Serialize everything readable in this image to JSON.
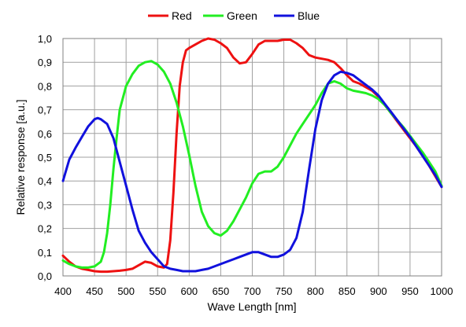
{
  "chart_data": {
    "type": "line",
    "xlabel": "Wave Length [nm]",
    "ylabel": "Relative response [a.u.]",
    "xlim": [
      400,
      1000
    ],
    "ylim": [
      0,
      1.0
    ],
    "x_ticks": [
      "400",
      "450",
      "500",
      "550",
      "600",
      "650",
      "700",
      "750",
      "800",
      "850",
      "900",
      "950",
      "1000"
    ],
    "x_tick_values": [
      400,
      450,
      500,
      550,
      600,
      650,
      700,
      750,
      800,
      850,
      900,
      950,
      1000
    ],
    "y_ticks": [
      "0,0",
      "0,1",
      "0,2",
      "0,3",
      "0,4",
      "0,5",
      "0,6",
      "0,7",
      "0,8",
      "0,9",
      "1,0"
    ],
    "y_tick_values": [
      0,
      0.1,
      0.2,
      0.3,
      0.4,
      0.5,
      0.6,
      0.7,
      0.8,
      0.9,
      1.0
    ],
    "grid": true,
    "legend_position": "top-center",
    "series": [
      {
        "name": "Red",
        "color": "#ee1111",
        "x": [
          400,
          410,
          420,
          430,
          440,
          450,
          460,
          470,
          480,
          490,
          500,
          510,
          520,
          530,
          540,
          550,
          560,
          565,
          570,
          575,
          580,
          585,
          590,
          595,
          600,
          610,
          620,
          630,
          640,
          650,
          660,
          670,
          680,
          690,
          700,
          710,
          720,
          730,
          740,
          750,
          760,
          770,
          780,
          790,
          800,
          810,
          820,
          830,
          840,
          850,
          860,
          870,
          880,
          890,
          900,
          910,
          920,
          930,
          940,
          950,
          960,
          970,
          980,
          990,
          1000
        ],
        "y": [
          0.085,
          0.06,
          0.04,
          0.03,
          0.025,
          0.02,
          0.018,
          0.018,
          0.02,
          0.022,
          0.025,
          0.03,
          0.045,
          0.06,
          0.055,
          0.04,
          0.035,
          0.05,
          0.15,
          0.35,
          0.6,
          0.8,
          0.9,
          0.95,
          0.96,
          0.975,
          0.99,
          1.0,
          0.995,
          0.98,
          0.96,
          0.92,
          0.895,
          0.9,
          0.935,
          0.975,
          0.99,
          0.99,
          0.99,
          0.995,
          0.995,
          0.98,
          0.96,
          0.93,
          0.92,
          0.915,
          0.91,
          0.9,
          0.875,
          0.845,
          0.82,
          0.81,
          0.795,
          0.78,
          0.755,
          0.72,
          0.685,
          0.65,
          0.615,
          0.58,
          0.545,
          0.505,
          0.465,
          0.42,
          0.375
        ]
      },
      {
        "name": "Green",
        "color": "#22ee22",
        "x": [
          400,
          410,
          420,
          430,
          440,
          450,
          460,
          465,
          470,
          475,
          480,
          485,
          490,
          500,
          510,
          520,
          530,
          540,
          550,
          560,
          570,
          580,
          590,
          600,
          610,
          620,
          630,
          640,
          650,
          660,
          670,
          680,
          690,
          700,
          710,
          720,
          730,
          740,
          750,
          760,
          770,
          780,
          790,
          800,
          810,
          820,
          830,
          840,
          850,
          860,
          870,
          880,
          890,
          900,
          910,
          920,
          930,
          940,
          950,
          960,
          970,
          980,
          990,
          1000
        ],
        "y": [
          0.065,
          0.05,
          0.04,
          0.035,
          0.035,
          0.04,
          0.06,
          0.1,
          0.18,
          0.3,
          0.45,
          0.58,
          0.7,
          0.8,
          0.85,
          0.885,
          0.9,
          0.905,
          0.89,
          0.86,
          0.81,
          0.73,
          0.63,
          0.51,
          0.38,
          0.27,
          0.21,
          0.18,
          0.17,
          0.19,
          0.23,
          0.28,
          0.33,
          0.39,
          0.43,
          0.44,
          0.44,
          0.46,
          0.5,
          0.55,
          0.6,
          0.64,
          0.68,
          0.72,
          0.77,
          0.81,
          0.82,
          0.81,
          0.79,
          0.78,
          0.775,
          0.77,
          0.76,
          0.745,
          0.72,
          0.685,
          0.655,
          0.625,
          0.59,
          0.555,
          0.52,
          0.48,
          0.44,
          0.38
        ]
      },
      {
        "name": "Blue",
        "color": "#1111dd",
        "x": [
          400,
          410,
          420,
          430,
          440,
          450,
          455,
          460,
          470,
          480,
          490,
          500,
          510,
          520,
          530,
          540,
          550,
          560,
          570,
          580,
          590,
          600,
          610,
          620,
          630,
          640,
          650,
          660,
          670,
          680,
          690,
          700,
          710,
          720,
          730,
          740,
          750,
          760,
          770,
          780,
          790,
          800,
          810,
          820,
          830,
          840,
          850,
          860,
          870,
          880,
          890,
          900,
          910,
          920,
          930,
          940,
          950,
          960,
          970,
          980,
          990,
          1000
        ],
        "y": [
          0.4,
          0.49,
          0.54,
          0.585,
          0.63,
          0.66,
          0.665,
          0.66,
          0.64,
          0.58,
          0.48,
          0.38,
          0.28,
          0.19,
          0.14,
          0.1,
          0.07,
          0.04,
          0.03,
          0.025,
          0.02,
          0.02,
          0.02,
          0.025,
          0.03,
          0.04,
          0.05,
          0.06,
          0.07,
          0.08,
          0.09,
          0.1,
          0.1,
          0.09,
          0.08,
          0.08,
          0.09,
          0.11,
          0.16,
          0.27,
          0.45,
          0.62,
          0.74,
          0.81,
          0.845,
          0.86,
          0.855,
          0.845,
          0.825,
          0.805,
          0.785,
          0.76,
          0.725,
          0.69,
          0.655,
          0.62,
          0.585,
          0.545,
          0.505,
          0.465,
          0.425,
          0.375
        ]
      }
    ]
  }
}
